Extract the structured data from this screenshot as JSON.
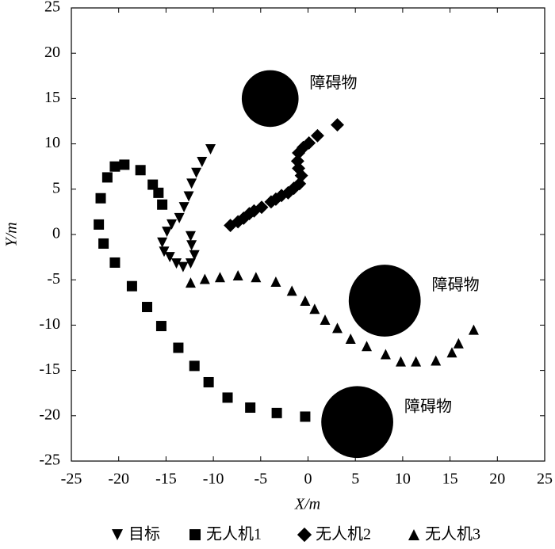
{
  "chart_data": {
    "type": "scatter",
    "xlabel": "X/m",
    "ylabel": "Y/m",
    "xlim": [
      -25,
      25
    ],
    "ylim": [
      -25,
      25
    ],
    "xticks": [
      -25,
      -20,
      -15,
      -10,
      -5,
      0,
      5,
      10,
      15,
      20,
      25
    ],
    "yticks": [
      -25,
      -20,
      -15,
      -10,
      -5,
      0,
      5,
      10,
      15,
      20,
      25
    ],
    "series": [
      {
        "name": "目标",
        "marker": "triangle-down",
        "color": "#000000",
        "x": [
          -10.3,
          -11.2,
          -11.8,
          -12.3,
          -12.6,
          -13.1,
          -13.6,
          -14.4,
          -14.9,
          -15.4,
          -15.2,
          -14.6,
          -13.9,
          -13.2,
          -12.4,
          -12.0,
          -12.3,
          -12.4
        ],
        "values": [
          9.4,
          8.0,
          6.8,
          5.6,
          4.2,
          3.0,
          1.8,
          1.1,
          0.3,
          -0.9,
          -1.9,
          -2.5,
          -3.2,
          -3.6,
          -3.2,
          -2.3,
          -1.2,
          -0.2
        ]
      },
      {
        "name": "无人机1",
        "marker": "square",
        "color": "#000000",
        "x": [
          -15.4,
          -15.8,
          -16.4,
          -17.7,
          -19.4,
          -20.4,
          -21.2,
          -21.9,
          -22.1,
          -21.6,
          -20.4,
          -18.6,
          -17.0,
          -15.5,
          -13.7,
          -12.0,
          -10.5,
          -8.5,
          -6.1,
          -3.3,
          -0.3
        ],
        "values": [
          3.3,
          4.6,
          5.5,
          7.1,
          7.7,
          7.5,
          6.3,
          4.0,
          1.1,
          -1.0,
          -3.1,
          -5.7,
          -8.0,
          -10.1,
          -12.5,
          -14.5,
          -16.3,
          -18.0,
          -19.1,
          -19.7,
          -20.1
        ]
      },
      {
        "name": "无人机2",
        "marker": "diamond",
        "color": "#000000",
        "x": [
          -8.2,
          -7.4,
          -6.8,
          -6.2,
          -5.7,
          -4.9,
          -3.9,
          -3.4,
          -2.8,
          -2.1,
          -1.5,
          -0.9,
          -0.7,
          -1.0,
          -1.1,
          -1.0,
          -0.5,
          0.1,
          1.0,
          3.1
        ],
        "values": [
          1.0,
          1.4,
          1.8,
          2.3,
          2.6,
          3.0,
          3.6,
          3.9,
          4.3,
          4.6,
          5.1,
          5.6,
          6.5,
          7.3,
          8.1,
          9.0,
          9.6,
          10.1,
          10.9,
          12.1
        ]
      },
      {
        "name": "无人机3",
        "marker": "triangle-up",
        "color": "#000000",
        "x": [
          -12.4,
          -10.9,
          -9.3,
          -7.4,
          -5.5,
          -3.4,
          -1.7,
          -0.3,
          0.7,
          1.8,
          3.1,
          4.5,
          6.2,
          8.2,
          9.8,
          11.4,
          13.5,
          15.2,
          15.9,
          17.5
        ],
        "values": [
          -5.3,
          -4.9,
          -4.7,
          -4.5,
          -4.7,
          -5.2,
          -6.2,
          -7.3,
          -8.2,
          -9.4,
          -10.3,
          -11.5,
          -12.3,
          -13.2,
          -14.0,
          -14.0,
          -13.9,
          -13.0,
          -12.0,
          -10.5
        ]
      }
    ],
    "obstacles": [
      {
        "label": "障碍物",
        "x": -4.0,
        "y": 15.0,
        "r": 3.0
      },
      {
        "label": "障碍物",
        "x": 8.1,
        "y": -7.3,
        "r": 3.8
      },
      {
        "label": "障碍物",
        "x": 5.2,
        "y": -20.7,
        "r": 3.8
      }
    ],
    "legend": "bottom"
  }
}
